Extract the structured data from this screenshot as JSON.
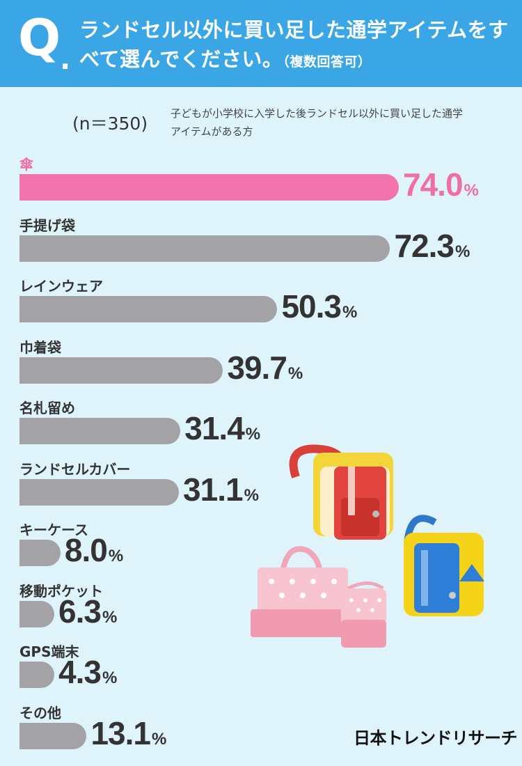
{
  "header": {
    "q_letter": "Q",
    "q_dot": ".",
    "question": "ランドセル以外に買い足した通学アイテムをすべて選んでください。",
    "question_note": "（複数回答可）"
  },
  "sample": {
    "n_label": "(n＝350)",
    "description": "子どもが小学校に入学した後ランドセル以外に買い足した通学アイテムがある方"
  },
  "chart_data": {
    "type": "bar",
    "orientation": "horizontal",
    "unit": "%",
    "categories": [
      "傘",
      "手提げ袋",
      "レインウェア",
      "巾着袋",
      "名札留め",
      "ランドセルカバー",
      "キーケース",
      "移動ポケット",
      "GPS端末",
      "その他"
    ],
    "values": [
      74.0,
      72.3,
      50.3,
      39.7,
      31.4,
      31.1,
      8.0,
      6.3,
      4.3,
      13.1
    ],
    "value_labels": [
      "74.0",
      "72.3",
      "50.3",
      "39.7",
      "31.4",
      "31.1",
      "8.0",
      "6.3",
      "4.3",
      "13.1"
    ],
    "highlight_index": 0,
    "colors": {
      "highlight": "#f173ab",
      "default": "#a3a3a6",
      "header": "#3aa6e6",
      "background": "#dff4fa"
    }
  },
  "footer": {
    "logo": "日本トレンドリサーチ"
  },
  "illustration": {
    "icon": "school-bags-illustration"
  }
}
